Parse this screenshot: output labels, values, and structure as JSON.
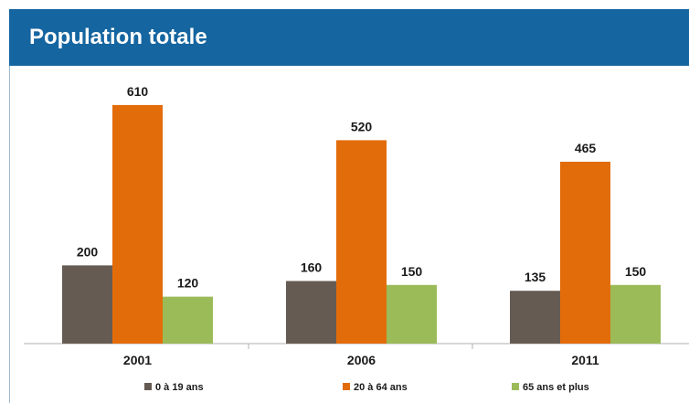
{
  "header": {
    "title": "Population totale"
  },
  "chart_data": {
    "type": "bar",
    "title": "Population totale",
    "categories": [
      "2001",
      "2006",
      "2011"
    ],
    "series": [
      {
        "name": "0 à 19 ans",
        "values": [
          200,
          160,
          135
        ],
        "color": "#665b52"
      },
      {
        "name": "20 à 64 ans",
        "values": [
          610,
          520,
          465
        ],
        "color": "#e36c0a"
      },
      {
        "name": "65 ans et plus",
        "values": [
          120,
          150,
          150
        ],
        "color": "#9bbb59"
      }
    ],
    "ylim": [
      0,
      700
    ],
    "xlabel": "",
    "ylabel": "",
    "grid": false,
    "legend": "bottom"
  }
}
